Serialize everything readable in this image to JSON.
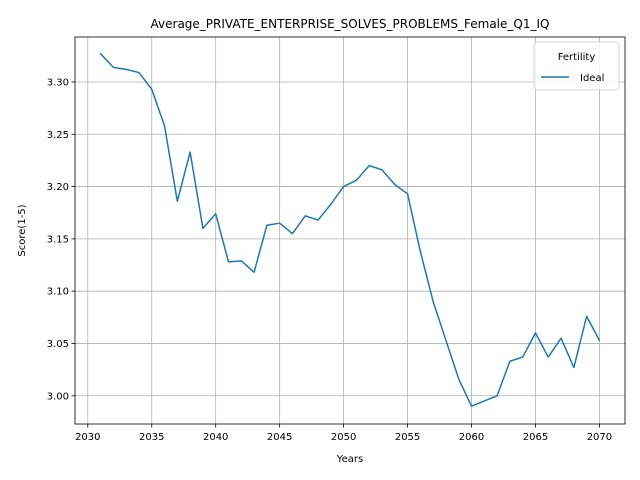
{
  "chart_data": {
    "type": "line",
    "title": "Average_PRIVATE_ENTERPRISE_SOLVES_PROBLEMS_Female_Q1_IQ",
    "xlabel": "Years",
    "ylabel": "Score(1-5)",
    "xlim": [
      2029.0,
      2072.0
    ],
    "ylim": [
      2.973,
      3.343
    ],
    "xticks": [
      2030,
      2035,
      2040,
      2045,
      2050,
      2055,
      2060,
      2065,
      2070
    ],
    "xtick_labels": [
      "2030",
      "2035",
      "2040",
      "2045",
      "2050",
      "2055",
      "2060",
      "2065",
      "2070"
    ],
    "yticks": [
      3.0,
      3.05,
      3.1,
      3.15,
      3.2,
      3.25,
      3.3
    ],
    "ytick_labels": [
      "3.00",
      "3.05",
      "3.10",
      "3.15",
      "3.20",
      "3.25",
      "3.30"
    ],
    "grid": true,
    "legend": {
      "title": "Fertility",
      "placement": "upper right"
    },
    "series": [
      {
        "name": "Ideal",
        "color": "#1f77b4",
        "x": [
          2031,
          2032,
          2033,
          2034,
          2035,
          2036,
          2037,
          2038,
          2039,
          2040,
          2041,
          2042,
          2043,
          2044,
          2045,
          2046,
          2047,
          2048,
          2049,
          2050,
          2051,
          2052,
          2053,
          2054,
          2055,
          2056,
          2057,
          2058,
          2059,
          2060,
          2061,
          2062,
          2063,
          2064,
          2065,
          2066,
          2067,
          2068,
          2069,
          2070
        ],
        "y": [
          3.327,
          3.314,
          3.312,
          3.309,
          3.293,
          3.258,
          3.186,
          3.233,
          3.16,
          3.174,
          3.128,
          3.129,
          3.118,
          3.163,
          3.165,
          3.155,
          3.172,
          3.168,
          3.183,
          3.2,
          3.206,
          3.22,
          3.216,
          3.202,
          3.193,
          3.138,
          3.09,
          3.053,
          3.016,
          2.99,
          2.995,
          3.0,
          3.033,
          3.037,
          3.06,
          3.037,
          3.055,
          3.027,
          3.076,
          3.053
        ]
      }
    ]
  }
}
